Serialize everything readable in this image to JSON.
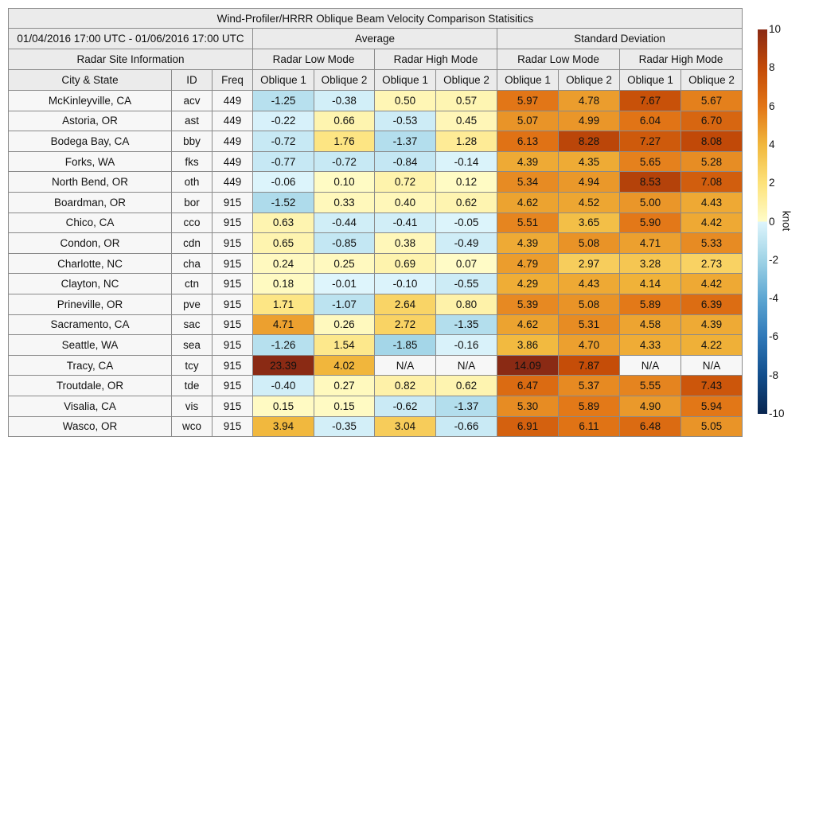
{
  "chart_data": {
    "type": "heatmap",
    "title": "Wind-Profiler/HRRR Oblique Beam Velocity Comparison Statisitics",
    "period": "01/04/2016 17:00 UTC - 01/06/2016 17:00 UTC",
    "site_header": "Radar Site Information",
    "groups": [
      "Average",
      "Standard Deviation"
    ],
    "modes": [
      "Radar Low Mode",
      "Radar High Mode",
      "Radar Low Mode",
      "Radar High Mode"
    ],
    "columns": [
      "City & State",
      "ID",
      "Freq",
      "Oblique 1",
      "Oblique 2",
      "Oblique 1",
      "Oblique 2",
      "Oblique 1",
      "Oblique 2",
      "Oblique 1",
      "Oblique 2"
    ],
    "rows": [
      {
        "city": "McKinleyville, CA",
        "id": "acv",
        "freq": "449",
        "values": [
          "-1.25",
          "-0.38",
          "0.50",
          "0.57",
          "5.97",
          "4.78",
          "7.67",
          "5.67"
        ]
      },
      {
        "city": "Astoria, OR",
        "id": "ast",
        "freq": "449",
        "values": [
          "-0.22",
          "0.66",
          "-0.53",
          "0.45",
          "5.07",
          "4.99",
          "6.04",
          "6.70"
        ]
      },
      {
        "city": "Bodega Bay, CA",
        "id": "bby",
        "freq": "449",
        "values": [
          "-0.72",
          "1.76",
          "-1.37",
          "1.28",
          "6.13",
          "8.28",
          "7.27",
          "8.08"
        ]
      },
      {
        "city": "Forks, WA",
        "id": "fks",
        "freq": "449",
        "values": [
          "-0.77",
          "-0.72",
          "-0.84",
          "-0.14",
          "4.39",
          "4.35",
          "5.65",
          "5.28"
        ]
      },
      {
        "city": "North Bend, OR",
        "id": "oth",
        "freq": "449",
        "values": [
          "-0.06",
          "0.10",
          "0.72",
          "0.12",
          "5.34",
          "4.94",
          "8.53",
          "7.08"
        ]
      },
      {
        "city": "Boardman, OR",
        "id": "bor",
        "freq": "915",
        "values": [
          "-1.52",
          "0.33",
          "0.40",
          "0.62",
          "4.62",
          "4.52",
          "5.00",
          "4.43"
        ]
      },
      {
        "city": "Chico, CA",
        "id": "cco",
        "freq": "915",
        "values": [
          "0.63",
          "-0.44",
          "-0.41",
          "-0.05",
          "5.51",
          "3.65",
          "5.90",
          "4.42"
        ]
      },
      {
        "city": "Condon, OR",
        "id": "cdn",
        "freq": "915",
        "values": [
          "0.65",
          "-0.85",
          "0.38",
          "-0.49",
          "4.39",
          "5.08",
          "4.71",
          "5.33"
        ]
      },
      {
        "city": "Charlotte, NC",
        "id": "cha",
        "freq": "915",
        "values": [
          "0.24",
          "0.25",
          "0.69",
          "0.07",
          "4.79",
          "2.97",
          "3.28",
          "2.73"
        ]
      },
      {
        "city": "Clayton, NC",
        "id": "ctn",
        "freq": "915",
        "values": [
          "0.18",
          "-0.01",
          "-0.10",
          "-0.55",
          "4.29",
          "4.43",
          "4.14",
          "4.42"
        ]
      },
      {
        "city": "Prineville, OR",
        "id": "pve",
        "freq": "915",
        "values": [
          "1.71",
          "-1.07",
          "2.64",
          "0.80",
          "5.39",
          "5.08",
          "5.89",
          "6.39"
        ]
      },
      {
        "city": "Sacramento, CA",
        "id": "sac",
        "freq": "915",
        "values": [
          "4.71",
          "0.26",
          "2.72",
          "-1.35",
          "4.62",
          "5.31",
          "4.58",
          "4.39"
        ]
      },
      {
        "city": "Seattle, WA",
        "id": "sea",
        "freq": "915",
        "values": [
          "-1.26",
          "1.54",
          "-1.85",
          "-0.16",
          "3.86",
          "4.70",
          "4.33",
          "4.22"
        ]
      },
      {
        "city": "Tracy, CA",
        "id": "tcy",
        "freq": "915",
        "values": [
          "23.39",
          "4.02",
          "N/A",
          "N/A",
          "14.09",
          "7.87",
          "N/A",
          "N/A"
        ]
      },
      {
        "city": "Troutdale, OR",
        "id": "tde",
        "freq": "915",
        "values": [
          "-0.40",
          "0.27",
          "0.82",
          "0.62",
          "6.47",
          "5.37",
          "5.55",
          "7.43"
        ]
      },
      {
        "city": "Visalia, CA",
        "id": "vis",
        "freq": "915",
        "values": [
          "0.15",
          "0.15",
          "-0.62",
          "-1.37",
          "5.30",
          "5.89",
          "4.90",
          "5.94"
        ]
      },
      {
        "city": "Wasco, OR",
        "id": "wco",
        "freq": "915",
        "values": [
          "3.94",
          "-0.35",
          "3.04",
          "-0.66",
          "6.91",
          "6.11",
          "6.48",
          "5.05"
        ]
      }
    ],
    "colorbar": {
      "label": "knot",
      "range": [
        -10,
        10
      ],
      "ticks": [
        "10",
        "8",
        "6",
        "4",
        "2",
        "0",
        "-2",
        "-4",
        "-6",
        "-8",
        "-10"
      ],
      "stops": [
        {
          "v": -10,
          "c": "#08254f"
        },
        {
          "v": -8,
          "c": "#124e8c"
        },
        {
          "v": -6,
          "c": "#2f78b8"
        },
        {
          "v": -4,
          "c": "#5ca6d2"
        },
        {
          "v": -2,
          "c": "#9fd3e6"
        },
        {
          "v": 0,
          "c": "#def5fc"
        },
        {
          "v": 0.01,
          "c": "#fffcc8"
        },
        {
          "v": 2,
          "c": "#fde27a"
        },
        {
          "v": 4,
          "c": "#f1b73c"
        },
        {
          "v": 6,
          "c": "#e27516"
        },
        {
          "v": 8,
          "c": "#c34a07"
        },
        {
          "v": 10,
          "c": "#8a2a14"
        }
      ],
      "na_color": "#f7f7f7"
    }
  }
}
